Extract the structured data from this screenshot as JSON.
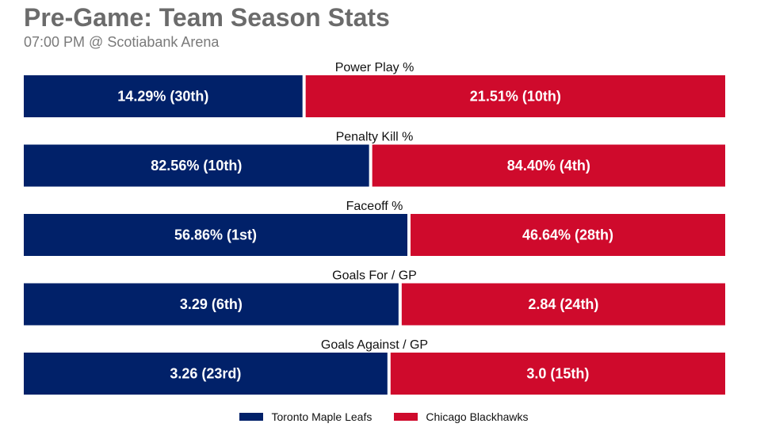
{
  "chart_data": {
    "type": "bar",
    "orientation": "horizontal-stacked-100",
    "title": "Pre-Game: Team Season Stats",
    "subtitle": "07:00 PM @ Scotiabank Arena",
    "categories": [
      "Power Play %",
      "Penalty Kill %",
      "Faceoff %",
      "Goals For / GP",
      "Goals Against / GP"
    ],
    "series": [
      {
        "name": "Toronto Maple Leafs",
        "color": "#012169",
        "values": [
          14.29,
          82.56,
          56.86,
          3.29,
          3.26
        ],
        "labels": [
          "14.29% (30th)",
          "82.56% (10th)",
          "56.86% (1st)",
          "3.29 (6th)",
          "3.26 (23rd)"
        ]
      },
      {
        "name": "Chicago Blackhawks",
        "color": "#CF0A2C",
        "values": [
          21.51,
          84.4,
          46.64,
          2.84,
          3.0
        ],
        "labels": [
          "21.51% (10th)",
          "84.40% (4th)",
          "46.64% (28th)",
          "2.84 (24th)",
          "3.0 (15th)"
        ]
      }
    ],
    "legend_position": "bottom-center",
    "grid": false
  },
  "legend": {
    "items": [
      {
        "label": "Toronto Maple Leafs",
        "color": "#012169"
      },
      {
        "label": "Chicago Blackhawks",
        "color": "#CF0A2C"
      }
    ]
  }
}
